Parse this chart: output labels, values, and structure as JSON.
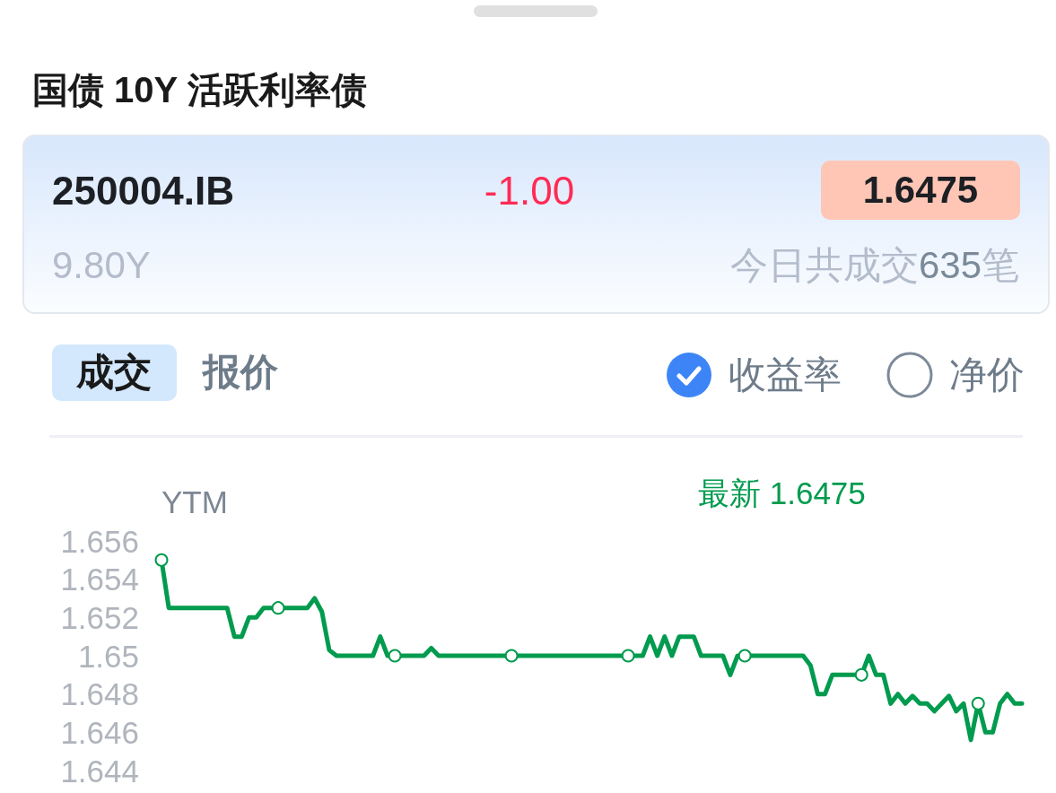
{
  "chart_data": {
    "type": "line",
    "title": "国债 10Y 活跃利率债",
    "ylabel": "YTM",
    "annotations": [
      "250004.IB",
      "-1.00",
      "1.6475",
      "9.80Y",
      "今日共成交635笔",
      "成交",
      "报价",
      "收益率",
      "净价",
      "最新 1.6475"
    ],
    "categories": [
      null,
      null,
      null,
      null,
      null,
      null,
      null,
      null,
      null,
      null,
      null,
      null,
      null,
      null,
      null,
      null,
      null,
      null,
      null,
      null,
      null,
      null,
      null,
      null,
      null,
      null,
      null,
      null,
      null,
      null,
      null,
      null,
      null,
      null,
      null,
      null,
      null,
      null,
      null,
      null,
      null,
      null,
      null,
      null,
      null,
      null,
      null,
      null,
      null,
      null,
      null,
      null,
      null,
      null,
      null,
      null,
      null,
      null,
      null,
      null,
      null,
      null,
      null,
      null,
      null,
      null,
      null,
      null,
      null,
      null,
      null,
      null,
      null,
      null,
      null,
      null,
      null,
      null,
      null,
      null,
      null,
      null,
      null,
      null,
      null,
      null,
      null,
      null,
      null,
      null,
      null,
      null,
      null,
      null,
      null,
      null,
      null,
      null,
      null,
      null,
      null,
      null,
      null,
      null,
      null,
      null,
      null,
      null,
      null,
      null,
      null,
      null,
      null,
      null,
      null,
      null,
      null,
      null,
      null
    ],
    "series": [
      {
        "color": "#009b4e",
        "values": [
          1.655,
          1.6525,
          1.6525,
          1.6525,
          1.6525,
          1.6525,
          1.6525,
          1.6525,
          1.6525,
          1.6525,
          1.651,
          1.651,
          1.652,
          1.652,
          1.6525,
          1.6525,
          1.6525,
          1.6525,
          1.6525,
          1.6525,
          1.6525,
          1.653,
          1.6523,
          1.6503,
          1.65,
          1.65,
          1.65,
          1.65,
          1.65,
          1.65,
          1.651,
          1.65,
          1.65,
          1.65,
          1.65,
          1.65,
          1.65,
          1.6504,
          1.65,
          1.65,
          1.65,
          1.65,
          1.65,
          1.65,
          1.65,
          1.65,
          1.65,
          1.65,
          1.65,
          1.65,
          1.65,
          1.65,
          1.65,
          1.65,
          1.65,
          1.65,
          1.65,
          1.65,
          1.65,
          1.65,
          1.65,
          1.65,
          1.65,
          1.65,
          1.65,
          1.65,
          1.65,
          1.651,
          1.65,
          1.651,
          1.65,
          1.651,
          1.651,
          1.651,
          1.65,
          1.65,
          1.65,
          1.65,
          1.649,
          1.65,
          1.65,
          1.65,
          1.65,
          1.65,
          1.65,
          1.65,
          1.65,
          1.65,
          1.65,
          1.6495,
          1.648,
          1.648,
          1.649,
          1.649,
          1.649,
          1.649,
          1.649,
          1.65,
          1.649,
          1.649,
          1.6475,
          1.648,
          1.6475,
          1.6479,
          1.6475,
          1.6475,
          1.6471,
          1.6475,
          1.6479,
          1.6471,
          1.6475,
          1.6456,
          1.6475,
          1.646,
          1.646,
          1.6475,
          1.648,
          1.6475,
          1.6475
        ]
      },
      {
        "type": "scatter",
        "marker": "circle",
        "color": "#009b4e",
        "values": [
          1.655,
          null,
          null,
          null,
          null,
          null,
          null,
          null,
          null,
          null,
          null,
          null,
          null,
          null,
          null,
          null,
          1.6525,
          null,
          null,
          null,
          null,
          null,
          null,
          null,
          null,
          null,
          null,
          null,
          null,
          null,
          null,
          null,
          1.65,
          null,
          null,
          null,
          null,
          null,
          null,
          null,
          null,
          null,
          null,
          null,
          null,
          null,
          null,
          null,
          1.65,
          null,
          null,
          null,
          null,
          null,
          null,
          null,
          null,
          null,
          null,
          null,
          null,
          null,
          null,
          null,
          1.65,
          null,
          null,
          null,
          null,
          null,
          null,
          null,
          null,
          null,
          null,
          null,
          null,
          null,
          null,
          null,
          1.65,
          null,
          null,
          null,
          null,
          null,
          null,
          null,
          null,
          null,
          null,
          null,
          null,
          null,
          null,
          null,
          1.649,
          null,
          null,
          null,
          null,
          null,
          null,
          null,
          null,
          null,
          null,
          null,
          null,
          null,
          null,
          null,
          1.6475,
          null,
          null,
          null,
          null,
          null,
          null
        ]
      }
    ],
    "ylim": [
      1.644,
      1.656
    ],
    "yticks": [
      1.644,
      1.646,
      1.648,
      1.65,
      1.652,
      1.654,
      1.656
    ]
  }
}
